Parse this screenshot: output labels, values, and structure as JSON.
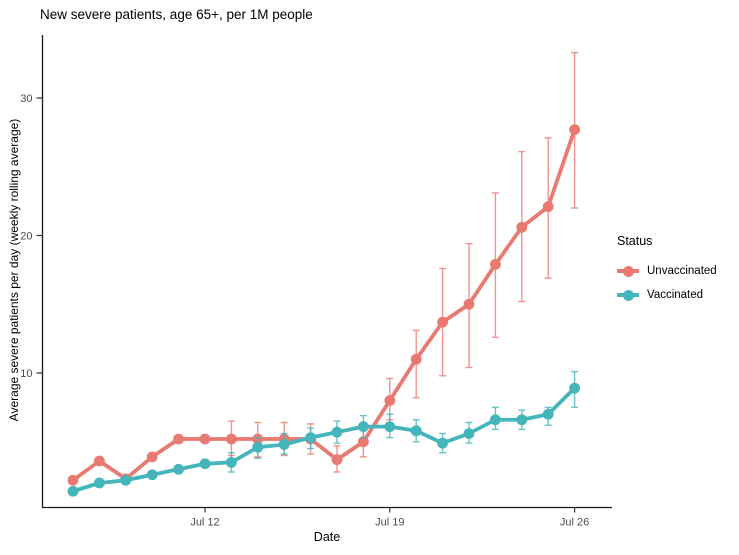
{
  "chart_data": {
    "type": "line",
    "title": "New severe patients, age 65+, per 1M people",
    "xlabel": "Date",
    "ylabel": "Average severe patients per day (weekly rolling average)",
    "grid": false,
    "ylim": [
      0.3,
      34.5
    ],
    "x_ticks": [
      {
        "day": 12,
        "label": "Jul 12"
      },
      {
        "day": 19,
        "label": "Jul 19"
      },
      {
        "day": 26,
        "label": "Jul 26"
      }
    ],
    "y_ticks": [
      {
        "value": 10,
        "label": "10"
      },
      {
        "value": 20,
        "label": "20"
      },
      {
        "value": 30,
        "label": "30"
      }
    ],
    "legend": {
      "title": "Status",
      "position": "right",
      "entries": [
        "Unvaccinated",
        "Vaccinated"
      ]
    },
    "dates": [
      "Jul 7",
      "Jul 8",
      "Jul 9",
      "Jul 10",
      "Jul 11",
      "Jul 12",
      "Jul 13",
      "Jul 14",
      "Jul 15",
      "Jul 16",
      "Jul 17",
      "Jul 18",
      "Jul 19",
      "Jul 20",
      "Jul 21",
      "Jul 22",
      "Jul 23",
      "Jul 24",
      "Jul 25",
      "Jul 26"
    ],
    "days": [
      7,
      8,
      9,
      10,
      11,
      12,
      13,
      14,
      15,
      16,
      17,
      18,
      19,
      20,
      21,
      22,
      23,
      24,
      25,
      26
    ],
    "series": [
      {
        "name": "Unvaccinated",
        "color": "#e97a71",
        "values": [
          2.2,
          3.6,
          2.3,
          3.9,
          5.2,
          5.2,
          5.2,
          5.2,
          5.2,
          5.2,
          3.7,
          5.0,
          8.0,
          11.0,
          13.7,
          15.0,
          17.9,
          20.6,
          22.1,
          27.7
        ],
        "err_low": [
          null,
          null,
          null,
          null,
          null,
          null,
          4.0,
          3.9,
          4.0,
          4.1,
          2.8,
          3.9,
          6.6,
          8.2,
          9.8,
          10.4,
          12.6,
          15.2,
          16.9,
          22.0
        ],
        "err_high": [
          null,
          null,
          null,
          null,
          null,
          null,
          6.5,
          6.4,
          6.4,
          6.3,
          4.7,
          6.2,
          9.6,
          13.1,
          17.6,
          19.4,
          23.1,
          26.1,
          27.1,
          33.3
        ]
      },
      {
        "name": "Vaccinated",
        "color": "#45b5bc",
        "values": [
          1.4,
          2.0,
          2.2,
          2.6,
          3.0,
          3.4,
          3.5,
          4.6,
          4.8,
          5.3,
          5.7,
          6.1,
          6.1,
          5.8,
          4.9,
          5.6,
          6.6,
          6.6,
          7.0,
          8.9
        ],
        "err_low": [
          null,
          null,
          null,
          null,
          null,
          null,
          2.8,
          3.8,
          4.1,
          4.5,
          4.9,
          5.3,
          5.3,
          5.0,
          4.2,
          4.9,
          5.9,
          5.9,
          6.2,
          7.5
        ],
        "err_high": [
          null,
          null,
          null,
          null,
          null,
          null,
          4.2,
          5.3,
          5.6,
          6.0,
          6.5,
          6.9,
          7.0,
          6.6,
          5.6,
          6.4,
          7.5,
          7.3,
          7.5,
          10.1
        ]
      }
    ]
  }
}
